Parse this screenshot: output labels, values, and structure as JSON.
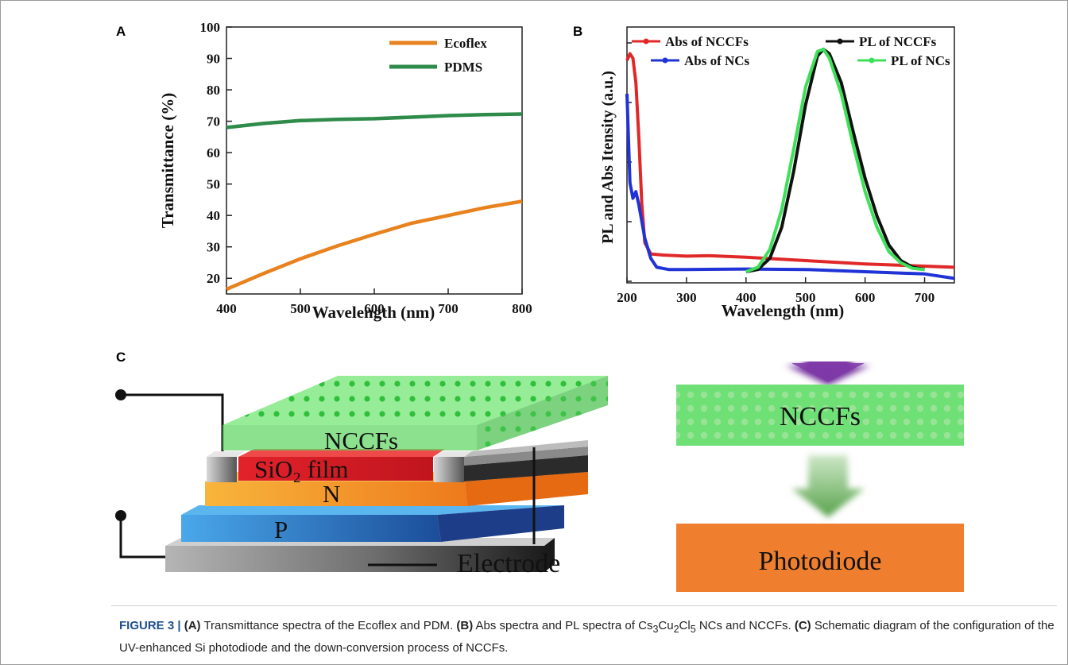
{
  "panels": {
    "a": {
      "letter": "A"
    },
    "b": {
      "letter": "B"
    },
    "c": {
      "letter": "C"
    }
  },
  "chart_data": [
    {
      "type": "line",
      "xlabel": "Wavelength (nm)",
      "ylabel": "Transmittance (%)",
      "xlim": [
        400,
        800
      ],
      "ylim": [
        15,
        100
      ],
      "xticks": [
        400,
        500,
        600,
        700,
        800
      ],
      "yticks": [
        20,
        30,
        40,
        50,
        60,
        70,
        80,
        90,
        100
      ],
      "grid": false,
      "legend": "top-right",
      "series": [
        {
          "name": "Ecoflex",
          "color": "#e8821e",
          "x": [
            400,
            450,
            500,
            550,
            600,
            650,
            700,
            750,
            800
          ],
          "y": [
            16.5,
            21.5,
            26.2,
            30.3,
            34.0,
            37.5,
            40.0,
            42.5,
            44.5
          ]
        },
        {
          "name": "PDMS",
          "color": "#2e8b4a",
          "x": [
            400,
            450,
            500,
            550,
            600,
            650,
            700,
            750,
            800
          ],
          "y": [
            68.0,
            69.3,
            70.2,
            70.6,
            70.8,
            71.3,
            71.8,
            72.1,
            72.3
          ]
        }
      ]
    },
    {
      "type": "line",
      "xlabel": "Wavelength (nm)",
      "ylabel": "PL and Abs Itensity (a.u.)",
      "xlim": [
        200,
        750
      ],
      "ylim": [
        0,
        1.05
      ],
      "xticks": [
        200,
        300,
        400,
        500,
        600,
        700
      ],
      "grid": false,
      "legend": "top",
      "series": [
        {
          "name": "Abs of NCCFs",
          "color": "#e02828",
          "x": [
            200,
            205,
            210,
            215,
            220,
            225,
            230,
            240,
            260,
            300,
            340,
            400,
            500,
            600,
            700,
            750
          ],
          "y": [
            0.95,
            0.98,
            0.96,
            0.85,
            0.6,
            0.3,
            0.13,
            0.08,
            0.075,
            0.07,
            0.072,
            0.065,
            0.05,
            0.035,
            0.025,
            0.02
          ]
        },
        {
          "name": "Abs of NCs",
          "color": "#1f33d6",
          "x": [
            200,
            205,
            210,
            215,
            220,
            230,
            240,
            250,
            270,
            300,
            400,
            500,
            600,
            700,
            750
          ],
          "y": [
            0.8,
            0.4,
            0.33,
            0.36,
            0.3,
            0.15,
            0.06,
            0.02,
            0.01,
            0.01,
            0.012,
            0.01,
            0.0,
            -0.01,
            -0.03
          ]
        },
        {
          "name": "PL of NCCFs",
          "color": "#111111",
          "x": [
            400,
            420,
            440,
            460,
            480,
            500,
            520,
            530,
            540,
            560,
            580,
            600,
            620,
            640,
            660,
            680,
            700
          ],
          "y": [
            0.0,
            0.01,
            0.06,
            0.2,
            0.45,
            0.75,
            0.97,
            1.0,
            0.98,
            0.85,
            0.63,
            0.42,
            0.25,
            0.12,
            0.05,
            0.02,
            0.01
          ]
        },
        {
          "name": "PL of NCs",
          "color": "#3ee05a",
          "x": [
            400,
            420,
            440,
            460,
            480,
            500,
            520,
            530,
            540,
            560,
            580,
            600,
            620,
            640,
            660,
            680,
            700
          ],
          "y": [
            0.0,
            0.02,
            0.1,
            0.28,
            0.55,
            0.83,
            0.99,
            1.0,
            0.96,
            0.8,
            0.57,
            0.36,
            0.2,
            0.09,
            0.04,
            0.015,
            0.01
          ]
        }
      ]
    }
  ],
  "schematic": {
    "nccfs_label": "NCCFs",
    "sio2_label": "SiO₂ film",
    "n_label": "N",
    "p_label": "P",
    "electrode_label": "Electrode",
    "nccfs_box_label": "NCCFs",
    "photodiode_label": "Photodiode"
  },
  "caption": {
    "figure_number": "FIGURE 3 |",
    "a_label": "(A)",
    "a_text": "Transmittance spectra of the Ecoflex and PDM.",
    "b_label": "(B)",
    "b_text1": "Abs spectra and PL spectra of Cs",
    "sub_3": "3",
    "cu": "Cu",
    "sub_2": "2",
    "cl": "Cl",
    "sub_5": "5",
    "b_text2": "NCs and NCCFs.",
    "c_label": "(C)",
    "c_text": "Schematic diagram of the configuration of the UV-enhanced Si photodiode and the down-conversion process of NCCFs."
  }
}
